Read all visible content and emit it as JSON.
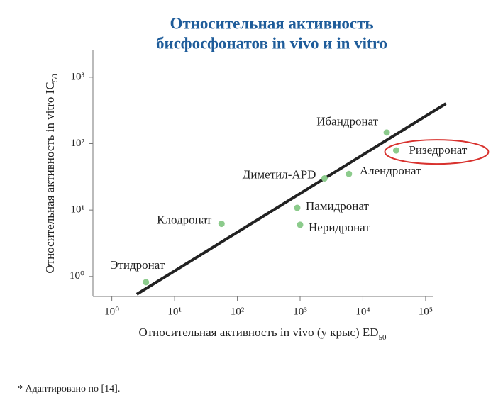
{
  "chart_data": {
    "type": "scatter",
    "title": [
      "Относительная активность",
      "бисфосфонатов in vivo и in vitro"
    ],
    "xlabel": {
      "text": "Относительная активность in vivo (у крыс) ED",
      "subscript": "50"
    },
    "ylabel": {
      "text": "Относительная активность in vitro IC",
      "subscript": "50"
    },
    "log_x": true,
    "log_y": true,
    "xlim": [
      0.5,
      130000
    ],
    "ylim": [
      0.5,
      2600
    ],
    "xticks": [
      {
        "value": 1,
        "label": "10⁰"
      },
      {
        "value": 10,
        "label": "10¹"
      },
      {
        "value": 100,
        "label": "10²"
      },
      {
        "value": 1000,
        "label": "10³"
      },
      {
        "value": 10000,
        "label": "10⁴"
      },
      {
        "value": 100000,
        "label": "10⁵"
      }
    ],
    "yticks": [
      {
        "value": 1,
        "label": "10⁰"
      },
      {
        "value": 10,
        "label": "10¹"
      },
      {
        "value": 100,
        "label": "10²"
      },
      {
        "value": 1000,
        "label": "10³"
      }
    ],
    "series": [
      {
        "names": [
          "Этидронат",
          "Клодронат",
          "Памидронат",
          "Неридронат",
          "Диметил-APD",
          "Алендронат",
          "Ибандронат",
          "Ризедронат"
        ],
        "color": "#8ccb8c",
        "x": [
          3.5,
          56,
          900,
          1000,
          2450,
          6000,
          24000,
          34000
        ],
        "values": [
          0.82,
          6.2,
          10.8,
          6.0,
          30,
          35,
          147,
          79
        ]
      }
    ],
    "trend_line": {
      "color": "#222222",
      "x": [
        2.5,
        210000
      ],
      "y": [
        0.54,
        400
      ]
    },
    "highlighted_point": 7,
    "highlight_color": "#d8322e",
    "footnote": "* Адаптировано по [14]."
  }
}
